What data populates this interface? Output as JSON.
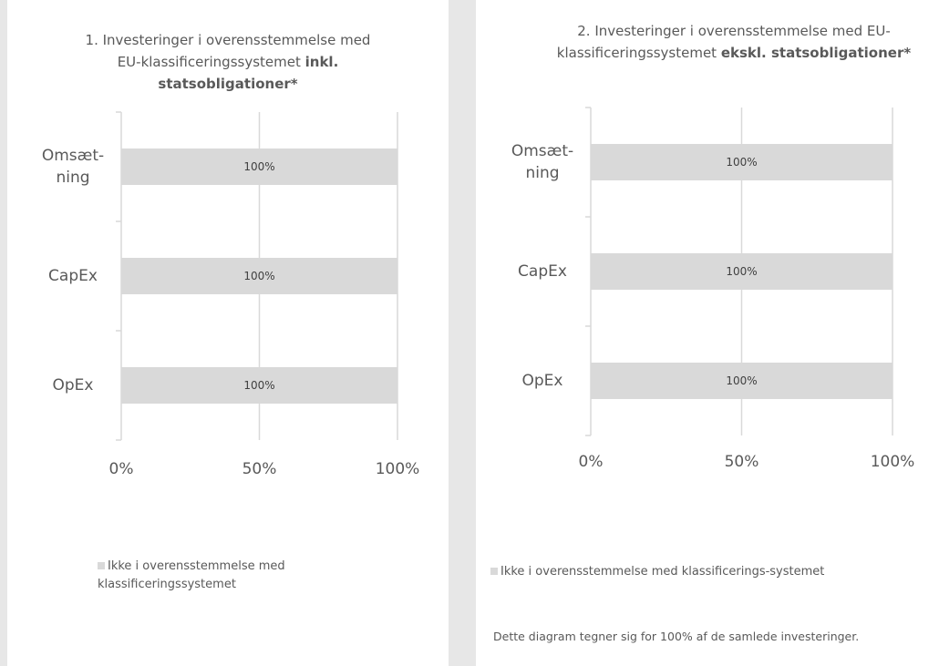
{
  "chart_data": [
    {
      "type": "barh",
      "title": "1. Investeringer i overensstemmelse med EU-klassificeringssystemet",
      "title_emphasis": "inkl. statsobligationer*",
      "categories": [
        "Omsæt-ning",
        "CapEx",
        "OpEx"
      ],
      "series": [
        {
          "name": "Ikke i overensstemmelse med klassificeringssystemet",
          "color": "#d9d9d9",
          "values": [
            100,
            100,
            100
          ],
          "value_labels": [
            "100%",
            "100%",
            "100%"
          ]
        }
      ],
      "xlim": [
        0,
        100
      ],
      "xticks": [
        {
          "value": 0,
          "label": "0%"
        },
        {
          "value": 50,
          "label": "50%"
        },
        {
          "value": 100,
          "label": "100%"
        }
      ],
      "grid": true,
      "legend": "bottom"
    },
    {
      "type": "barh",
      "title": "2. Investeringer i overensstemmelse med EU-klassificeringssystemet",
      "title_emphasis": "ekskl. statsobligationer*",
      "categories": [
        "Omsæt-ning",
        "CapEx",
        "OpEx"
      ],
      "series": [
        {
          "name": "Ikke i overensstemmelse med klassificerings-systemet",
          "color": "#d9d9d9",
          "values": [
            100,
            100,
            100
          ],
          "value_labels": [
            "100%",
            "100%",
            "100%"
          ]
        }
      ],
      "xlim": [
        0,
        100
      ],
      "xticks": [
        {
          "value": 0,
          "label": "0%"
        },
        {
          "value": 50,
          "label": "50%"
        },
        {
          "value": 100,
          "label": "100%"
        }
      ],
      "grid": true,
      "legend": "bottom",
      "note": "Dette diagram tegner sig for 100% af de samlede investeringer."
    }
  ]
}
